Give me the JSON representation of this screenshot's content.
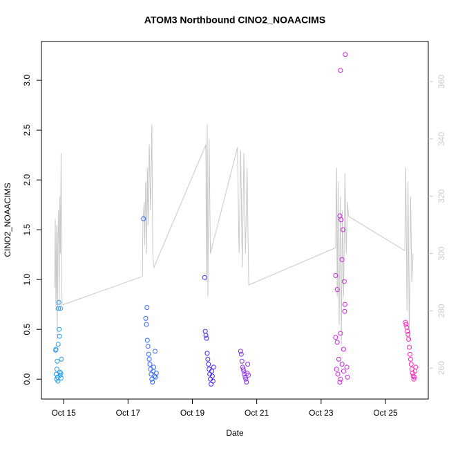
{
  "chart_data": {
    "type": "scatter",
    "title": "ATOM3 Northbound CINO2_NOAACIMS",
    "x_label": "Date",
    "y_label": "CINO2_NOAACIMS",
    "xlim": [
      14.31,
      26.33
    ],
    "xticks": [
      {
        "value": 15,
        "label": "Oct 15"
      },
      {
        "value": 17,
        "label": "Oct 17"
      },
      {
        "value": 19,
        "label": "Oct 19"
      },
      {
        "value": 21,
        "label": "Oct 21"
      },
      {
        "value": 23,
        "label": "Oct 23"
      },
      {
        "value": 25,
        "label": "Oct 25"
      }
    ],
    "ylim": [
      -0.2,
      3.39
    ],
    "yticks": [
      {
        "value": 0,
        "label": "0.0"
      },
      0.5,
      {
        "value": 1,
        "label": "1.0"
      },
      1.5,
      {
        "value": 2,
        "label": "2.0"
      },
      2.5,
      {
        "value": 3,
        "label": "3.0"
      }
    ],
    "y2lim": [
      249.2,
      374
    ],
    "y2ticks": [
      260,
      280,
      300,
      320,
      340,
      360
    ],
    "y2_color": "#cccccc",
    "series": [
      {
        "color": "#2299ee",
        "x": [
          14.75,
          14.76,
          14.77,
          14.78,
          14.79,
          14.8,
          14.81,
          14.82,
          14.83,
          14.84,
          14.85,
          14.86,
          14.87,
          14.88,
          14.89,
          14.9,
          14.91,
          14.92,
          14.93
        ],
        "values": [
          0.29,
          0.3,
          0.05,
          0.0,
          0.1,
          0.18,
          0.02,
          -0.02,
          0.35,
          0.71,
          0.77,
          0.5,
          0.43,
          0.07,
          0.04,
          0.71,
          0.06,
          0.01,
          0.2
        ]
      },
      {
        "color": "#3366ff",
        "x": [
          17.48,
          17.55,
          17.57,
          17.59,
          17.6,
          17.62,
          17.64,
          17.66,
          17.68,
          17.7,
          17.72,
          17.74,
          17.76,
          17.78,
          17.8,
          17.82,
          17.84,
          17.86,
          17.88
        ],
        "values": [
          1.61,
          0.61,
          0.55,
          0.72,
          0.39,
          0.33,
          0.25,
          0.2,
          0.15,
          0.1,
          0.05,
          0.0,
          -0.03,
          0.08,
          0.12,
          0.03,
          0.28,
          0.02,
          0.06
        ]
      },
      {
        "color": "#4422ee",
        "x": [
          19.38,
          19.4,
          19.42,
          19.44,
          19.46,
          19.48,
          19.5,
          19.52,
          19.54,
          19.56,
          19.58,
          19.6,
          19.62,
          19.64,
          19.66
        ],
        "values": [
          1.02,
          0.48,
          0.44,
          0.41,
          0.26,
          0.2,
          0.15,
          0.1,
          0.05,
          0.0,
          -0.05,
          0.08,
          0.03,
          -0.02,
          0.12
        ]
      },
      {
        "color": "#8a2be2",
        "x": [
          20.5,
          20.52,
          20.54,
          20.56,
          20.58,
          20.6,
          20.62,
          20.64,
          20.66,
          20.68,
          20.7,
          20.72,
          20.74
        ],
        "values": [
          0.28,
          0.25,
          0.18,
          0.12,
          0.1,
          0.08,
          0.05,
          0.02,
          0.0,
          -0.03,
          0.06,
          0.15,
          0.04
        ]
      },
      {
        "color": "#cc22dd",
        "x": [
          23.75,
          23.6,
          23.58,
          23.62,
          23.68,
          23.65,
          23.45,
          23.72,
          23.5,
          23.74,
          23.73,
          23.6,
          23.45,
          23.5,
          23.7,
          23.55,
          23.65,
          23.48,
          23.52,
          23.6,
          23.58,
          23.7,
          23.8,
          23.82
        ],
        "values": [
          3.26,
          3.1,
          1.64,
          1.6,
          1.5,
          1.2,
          1.04,
          0.98,
          0.9,
          0.75,
          0.68,
          0.46,
          0.42,
          0.37,
          0.3,
          0.2,
          0.15,
          0.1,
          0.05,
          0.0,
          -0.03,
          0.08,
          0.12,
          0.02
        ]
      },
      {
        "color": "#ff22bb",
        "x": [
          25.62,
          25.64,
          25.66,
          25.68,
          25.7,
          25.72,
          25.74,
          25.76,
          25.78,
          25.8,
          25.82,
          25.84,
          25.86,
          25.88,
          25.9,
          25.92,
          25.94
        ],
        "values": [
          0.57,
          0.55,
          0.52,
          0.48,
          0.45,
          0.4,
          0.32,
          0.25,
          0.2,
          0.15,
          0.1,
          0.06,
          0.03,
          0.0,
          0.02,
          0.08,
          0.12
        ]
      },
      {
        "type": "line",
        "axis": "y2",
        "color": "#c8c8c8",
        "x": [
          14.72,
          14.74,
          14.76,
          14.78,
          14.8,
          14.82,
          14.84,
          14.86,
          14.88,
          14.9,
          14.92,
          14.94,
          14.95,
          17.45,
          17.46,
          17.5,
          17.52,
          17.55,
          17.58,
          17.6,
          17.63,
          17.66,
          17.7,
          17.74,
          17.77,
          17.8,
          19.42,
          19.44,
          19.46,
          19.48,
          19.52,
          19.56,
          20.4,
          20.45,
          20.5,
          20.55,
          20.6,
          20.65,
          20.7,
          20.75,
          23.45,
          23.48,
          23.5,
          23.53,
          23.56,
          23.6,
          23.63,
          23.66,
          23.7,
          23.74,
          23.78,
          23.82,
          23.85,
          25.6,
          25.63,
          25.67,
          25.7,
          25.74,
          25.78,
          25.82,
          25.86
        ],
        "values": [
          288,
          312,
          280,
          310,
          270,
          305,
          315,
          282,
          320,
          300,
          335,
          290,
          282,
          292,
          310,
          318,
          303,
          325,
          300,
          330,
          310,
          338,
          315,
          345,
          300,
          295,
          338,
          290,
          345,
          285,
          340,
          300,
          337,
          300,
          336,
          295,
          335,
          300,
          330,
          289,
          302,
          330,
          285,
          325,
          275,
          320,
          268,
          315,
          285,
          328,
          300,
          318,
          313,
          301,
          330,
          280,
          325,
          270,
          320,
          290,
          300
        ]
      }
    ]
  }
}
